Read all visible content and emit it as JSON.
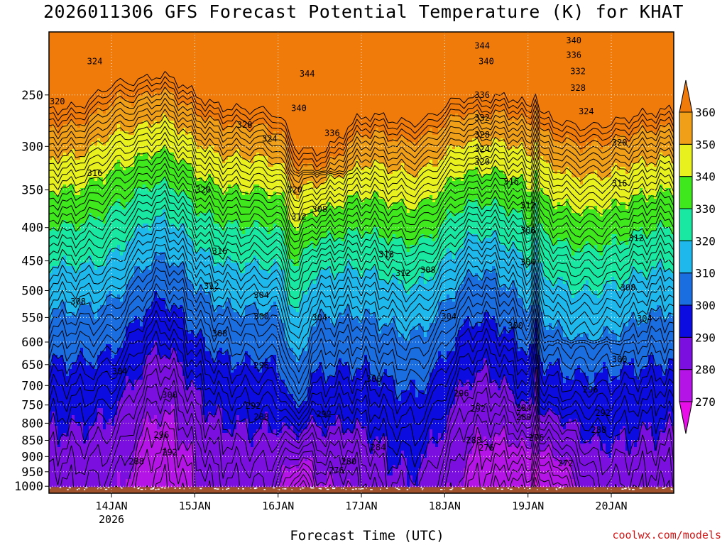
{
  "chart_data": {
    "type": "heatmap",
    "title": "2026011306 GFS Forecast Potential Temperature (K) for KHAT",
    "xlabel": "Forecast Time (UTC)",
    "ylabel": "",
    "credit": "coolwx.com/models",
    "y_scale": "log",
    "y_reversed": true,
    "ylim": [
      1025,
      200
    ],
    "y_ticks": [
      250,
      300,
      350,
      400,
      450,
      500,
      550,
      600,
      650,
      700,
      750,
      800,
      850,
      900,
      950,
      1000
    ],
    "x_range_days": [
      13.25,
      20.75
    ],
    "x_ticks": [
      {
        "day": 14,
        "label": "14JAN",
        "label2": "2026"
      },
      {
        "day": 15,
        "label": "15JAN",
        "label2": ""
      },
      {
        "day": 16,
        "label": "16JAN",
        "label2": ""
      },
      {
        "day": 17,
        "label": "17JAN",
        "label2": ""
      },
      {
        "day": 18,
        "label": "18JAN",
        "label2": ""
      },
      {
        "day": 19,
        "label": "19JAN",
        "label2": ""
      },
      {
        "day": 20,
        "label": "20JAN",
        "label2": ""
      }
    ],
    "grid": true,
    "colorbar": {
      "levels": [
        270,
        280,
        290,
        300,
        310,
        320,
        330,
        340,
        350,
        360
      ],
      "colors": [
        "#e80ee8",
        "#b414e6",
        "#7b0fe0",
        "#0c0ce0",
        "#1b6ee0",
        "#1fb8ec",
        "#18e8a2",
        "#3ee81c",
        "#e8f01e",
        "#f0a018",
        "#f07a0a"
      ],
      "extend": "both"
    },
    "contour_interval": 2,
    "contour_labels": [
      {
        "value": 324,
        "day": 13.8,
        "p": 222
      },
      {
        "value": 320,
        "day": 13.35,
        "p": 256
      },
      {
        "value": 316,
        "day": 13.8,
        "p": 330
      },
      {
        "value": 308,
        "day": 13.6,
        "p": 520
      },
      {
        "value": 304,
        "day": 14.1,
        "p": 666
      },
      {
        "value": 300,
        "day": 14.7,
        "p": 724
      },
      {
        "value": 296,
        "day": 14.6,
        "p": 834
      },
      {
        "value": 292,
        "day": 14.7,
        "p": 887
      },
      {
        "value": 288,
        "day": 14.3,
        "p": 916
      },
      {
        "value": 320,
        "day": 15.1,
        "p": 350
      },
      {
        "value": 316,
        "day": 15.3,
        "p": 435
      },
      {
        "value": 312,
        "day": 15.2,
        "p": 492
      },
      {
        "value": 308,
        "day": 15.3,
        "p": 582
      },
      {
        "value": 328,
        "day": 15.6,
        "p": 278
      },
      {
        "value": 324,
        "day": 15.9,
        "p": 292
      },
      {
        "value": 320,
        "day": 16.2,
        "p": 350
      },
      {
        "value": 312,
        "day": 16.25,
        "p": 385
      },
      {
        "value": 308,
        "day": 16.5,
        "p": 375
      },
      {
        "value": 304,
        "day": 15.8,
        "p": 508
      },
      {
        "value": 300,
        "day": 15.8,
        "p": 548
      },
      {
        "value": 296,
        "day": 15.8,
        "p": 652
      },
      {
        "value": 292,
        "day": 15.7,
        "p": 752
      },
      {
        "value": 288,
        "day": 15.8,
        "p": 782
      },
      {
        "value": 344,
        "day": 16.35,
        "p": 232
      },
      {
        "value": 340,
        "day": 16.25,
        "p": 262
      },
      {
        "value": 336,
        "day": 16.65,
        "p": 286
      },
      {
        "value": 304,
        "day": 16.5,
        "p": 550
      },
      {
        "value": 292,
        "day": 16.55,
        "p": 774
      },
      {
        "value": 284,
        "day": 17.2,
        "p": 872
      },
      {
        "value": 280,
        "day": 16.85,
        "p": 916
      },
      {
        "value": 276,
        "day": 16.7,
        "p": 946
      },
      {
        "value": 300,
        "day": 17.15,
        "p": 684
      },
      {
        "value": 316,
        "day": 17.3,
        "p": 440
      },
      {
        "value": 312,
        "day": 17.5,
        "p": 470
      },
      {
        "value": 308,
        "day": 17.8,
        "p": 465
      },
      {
        "value": 304,
        "day": 18.05,
        "p": 548
      },
      {
        "value": 296,
        "day": 18.2,
        "p": 720
      },
      {
        "value": 292,
        "day": 18.4,
        "p": 760
      },
      {
        "value": 288,
        "day": 18.35,
        "p": 850
      },
      {
        "value": 276,
        "day": 18.5,
        "p": 873
      },
      {
        "value": 344,
        "day": 18.45,
        "p": 210
      },
      {
        "value": 340,
        "day": 18.5,
        "p": 222
      },
      {
        "value": 336,
        "day": 18.45,
        "p": 250
      },
      {
        "value": 332,
        "day": 18.45,
        "p": 271
      },
      {
        "value": 328,
        "day": 18.45,
        "p": 288
      },
      {
        "value": 324,
        "day": 18.45,
        "p": 303
      },
      {
        "value": 320,
        "day": 18.45,
        "p": 317
      },
      {
        "value": 316,
        "day": 18.8,
        "p": 340
      },
      {
        "value": 312,
        "day": 19.0,
        "p": 370
      },
      {
        "value": 308,
        "day": 19.0,
        "p": 404
      },
      {
        "value": 304,
        "day": 19.0,
        "p": 452
      },
      {
        "value": 300,
        "day": 18.85,
        "p": 566
      },
      {
        "value": 284,
        "day": 18.95,
        "p": 758
      },
      {
        "value": 280,
        "day": 18.95,
        "p": 783
      },
      {
        "value": 276,
        "day": 19.1,
        "p": 843
      },
      {
        "value": 272,
        "day": 19.45,
        "p": 922
      },
      {
        "value": 340,
        "day": 19.55,
        "p": 206
      },
      {
        "value": 336,
        "day": 19.55,
        "p": 217
      },
      {
        "value": 332,
        "day": 19.6,
        "p": 230
      },
      {
        "value": 328,
        "day": 19.6,
        "p": 244
      },
      {
        "value": 324,
        "day": 19.7,
        "p": 265
      },
      {
        "value": 320,
        "day": 20.1,
        "p": 296
      },
      {
        "value": 316,
        "day": 20.1,
        "p": 342
      },
      {
        "value": 312,
        "day": 20.3,
        "p": 415
      },
      {
        "value": 308,
        "day": 20.2,
        "p": 495
      },
      {
        "value": 304,
        "day": 20.4,
        "p": 552
      },
      {
        "value": 300,
        "day": 20.1,
        "p": 638
      },
      {
        "value": 296,
        "day": 19.75,
        "p": 710
      },
      {
        "value": 292,
        "day": 19.9,
        "p": 772
      },
      {
        "value": 288,
        "day": 19.85,
        "p": 820
      }
    ]
  }
}
